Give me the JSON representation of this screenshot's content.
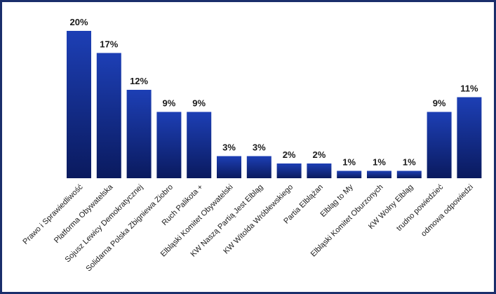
{
  "chart_data": {
    "type": "bar",
    "title": "",
    "xlabel": "",
    "ylabel": "",
    "ylim": [
      0,
      20
    ],
    "grid": false,
    "legend": "none",
    "categories": [
      "Prawo i Sprawiedliwość",
      "Platforma Obywatelska",
      "Sojusz Lewicy Demokratycznej",
      "Solidarna Polska Zbigniewa Ziobro",
      "Ruch Palikota +",
      "Elbląski Komitet Obywatelski",
      "KW Naszą Partią Jest Elbląg",
      "KW Witolda Wróblewskiego",
      "Partia Elblążan",
      "Elbląg to My",
      "Elbląski Komitet Oburzonych",
      "KW Wolny Elbląg",
      "trudno powiedzieć",
      "odmowa odpowiedzi"
    ],
    "values": [
      20,
      17,
      12,
      9,
      9,
      3,
      3,
      2,
      2,
      1,
      1,
      1,
      9,
      11
    ],
    "value_labels": [
      "20%",
      "17%",
      "12%",
      "9%",
      "9%",
      "3%",
      "3%",
      "2%",
      "2%",
      "1%",
      "1%",
      "1%",
      "9%",
      "11%"
    ],
    "colors": {
      "bar_top": "#1d3fb5",
      "bar_bottom": "#0a1a5e",
      "frame": "#1a2e6b"
    }
  }
}
